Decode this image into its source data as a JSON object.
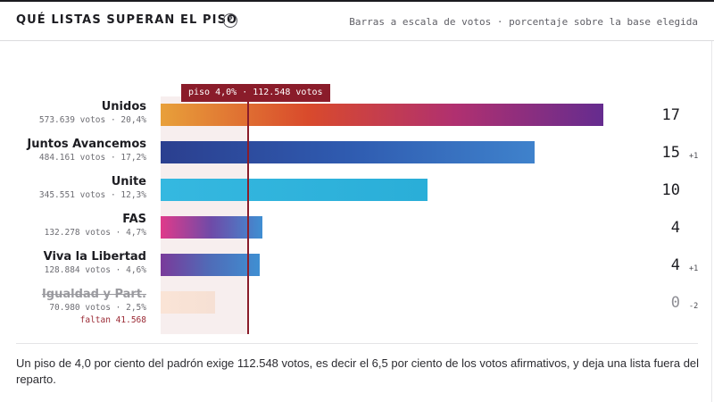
{
  "header": {
    "title": "QUÉ LISTAS SUPERAN EL PISO",
    "help_icon": "question-circle-icon",
    "help_label": "?",
    "subtitle": "Barras a escala de votos · porcentaje sobre la base elegida"
  },
  "threshold": {
    "label": "piso 4,0% · 112.548 votos",
    "votes": 112548,
    "color": "#8a1c2a"
  },
  "chart_data": {
    "type": "bar",
    "orientation": "horizontal",
    "categories": [
      "Unidos",
      "Juntos Avancemos",
      "Unite",
      "FAS",
      "Viva la Libertad",
      "Igualdad y Part."
    ],
    "values": [
      573639,
      484161,
      345551,
      132278,
      128884,
      70980
    ],
    "threshold": 112548,
    "xlim": [
      0,
      573639
    ],
    "series": [
      {
        "values": [
          573639,
          484161,
          345551,
          132278,
          128884,
          70980
        ]
      }
    ]
  },
  "lists": [
    {
      "name": "Unidos",
      "votes": 573639,
      "detail": "573.639 votos · 20,4%",
      "seats": "17",
      "delta": "",
      "passes": true,
      "gradient": [
        "#e8a03a",
        "#d94a2c",
        "#b03070",
        "#652c8f"
      ]
    },
    {
      "name": "Juntos Avancemos",
      "votes": 484161,
      "detail": "484.161 votos · 17,2%",
      "seats": "15",
      "delta": "+1",
      "passes": true,
      "gradient": [
        "#2b3f8f",
        "#2f5bb0",
        "#3f82cc"
      ]
    },
    {
      "name": "Unite",
      "votes": 345551,
      "detail": "345.551 votos · 12,3%",
      "seats": "10",
      "delta": "",
      "passes": true,
      "gradient": [
        "#35b8e0",
        "#2aaed8"
      ]
    },
    {
      "name": "FAS",
      "votes": 132278,
      "detail": "132.278 votos · 4,7%",
      "seats": "4",
      "delta": "",
      "passes": true,
      "gradient": [
        "#e03a8a",
        "#6e4ba8",
        "#3f8fd2"
      ]
    },
    {
      "name": "Viva la Libertad",
      "votes": 128884,
      "detail": "128.884 votos · 4,6%",
      "seats": "4",
      "delta": "+1",
      "passes": true,
      "gradient": [
        "#7a3a9a",
        "#4f6cb8",
        "#3f8fd2"
      ]
    },
    {
      "name": "Igualdad y Part.",
      "votes": 70980,
      "detail": "70.980 votos · 2,5%",
      "missing": "faltan 41.568",
      "seats": "0",
      "delta": "-2",
      "passes": false,
      "gradient": [
        "#fae4d6",
        "#f6e0d4"
      ]
    }
  ],
  "footnote": "Un piso de 4,0 por ciento del padrón exige 112.548 votos, es decir el 6,5 por ciento de los votos afirmativos, y deja una lista fuera del reparto."
}
